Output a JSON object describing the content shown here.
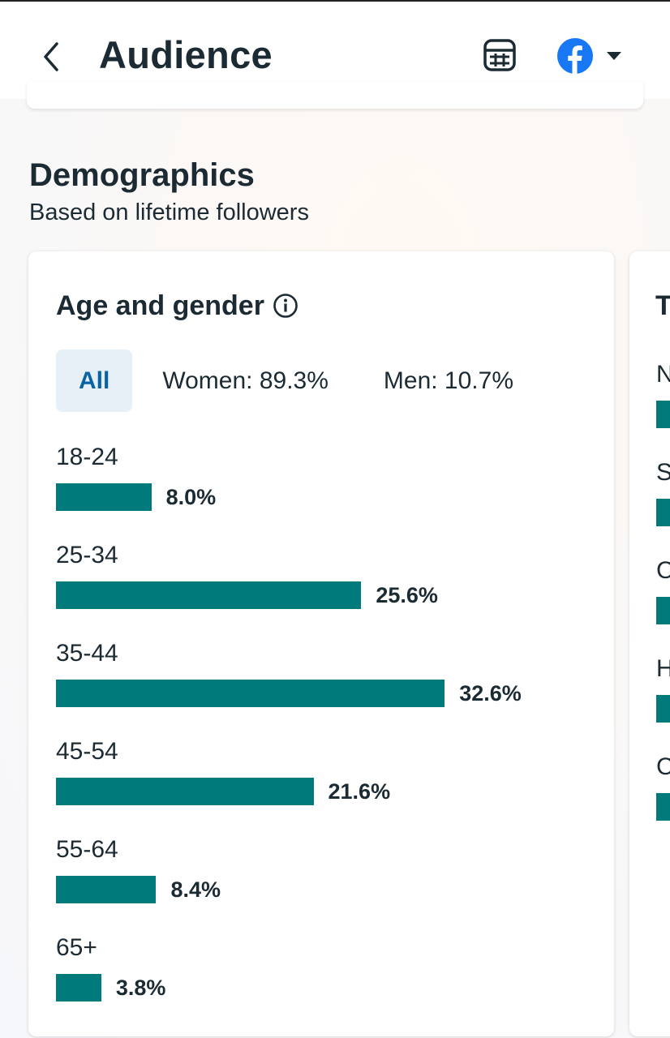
{
  "header": {
    "title": "Audience",
    "back_icon": "chevron-left-icon",
    "calculator_icon": "calculator-icon",
    "account_icon": "facebook-logo-icon",
    "dropdown_icon": "caret-down-icon"
  },
  "section": {
    "title": "Demographics",
    "subtitle": "Based on lifetime followers"
  },
  "age_gender_card": {
    "title": "Age and gender",
    "info_icon": "info-icon",
    "filters": [
      {
        "label": "All",
        "selected": true
      },
      {
        "label": "Women: 89.3%",
        "selected": false
      },
      {
        "label": "Men: 10.7%",
        "selected": false
      }
    ]
  },
  "chart_data": {
    "type": "bar",
    "orientation": "horizontal",
    "categories": [
      "18-24",
      "25-34",
      "35-44",
      "45-54",
      "55-64",
      "65+"
    ],
    "values": [
      8.0,
      25.6,
      32.6,
      21.6,
      8.4,
      3.8
    ],
    "value_labels": [
      "8.0%",
      "25.6%",
      "32.6%",
      "21.6%",
      "8.4%",
      "3.8%"
    ],
    "color": "#017a7c",
    "grid": false
  },
  "next_card": {
    "title_partial": "T",
    "label_partials": [
      "N",
      "S",
      "C",
      "H",
      "C"
    ]
  },
  "colors": {
    "bar": "#017a7c",
    "chip_active_bg": "#e7f0f7",
    "chip_active_text": "#0a64a4",
    "facebook_blue": "#1877f2",
    "text": "#1c2b33"
  }
}
